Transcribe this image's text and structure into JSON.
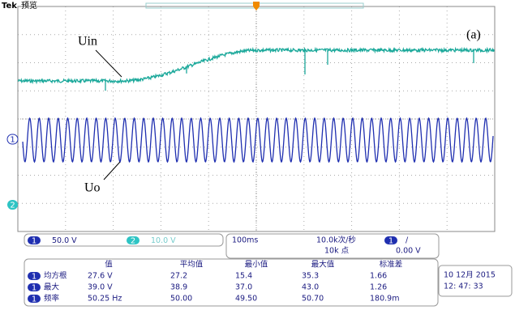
{
  "header": {
    "brand": "Tek",
    "mode": "预览"
  },
  "annotations": {
    "panel": "(a)",
    "input": "Uin",
    "output": "Uo"
  },
  "markers": {
    "ch1": "1",
    "ch2": "2"
  },
  "status": {
    "ch1_label": "1",
    "ch1_scale": "50.0 V",
    "ch2_label": "2",
    "ch2_scale": "10.0 V",
    "timebase": "100ms",
    "sample_rate": "10.0k次/秒",
    "record_length": "10k 点",
    "trigger_source": "1",
    "trigger_slope": "/",
    "trigger_level": "0.00 V"
  },
  "measurements": {
    "headers": [
      "值",
      "平均值",
      "最小值",
      "最大值",
      "标准差"
    ],
    "rows": [
      {
        "source": "1",
        "label": "均方根",
        "values": [
          "27.6 V",
          "27.2",
          "15.4",
          "35.3",
          "1.66"
        ]
      },
      {
        "source": "1",
        "label": "最大",
        "values": [
          "39.0 V",
          "38.9",
          "37.0",
          "43.0",
          "1.26"
        ]
      },
      {
        "source": "1",
        "label": "频率",
        "values": [
          "50.25 Hz",
          "50.00",
          "49.50",
          "50.70",
          "180.9m"
        ]
      }
    ]
  },
  "datetime": {
    "date": "10 12月  2015",
    "time": "12: 47: 33"
  }
}
